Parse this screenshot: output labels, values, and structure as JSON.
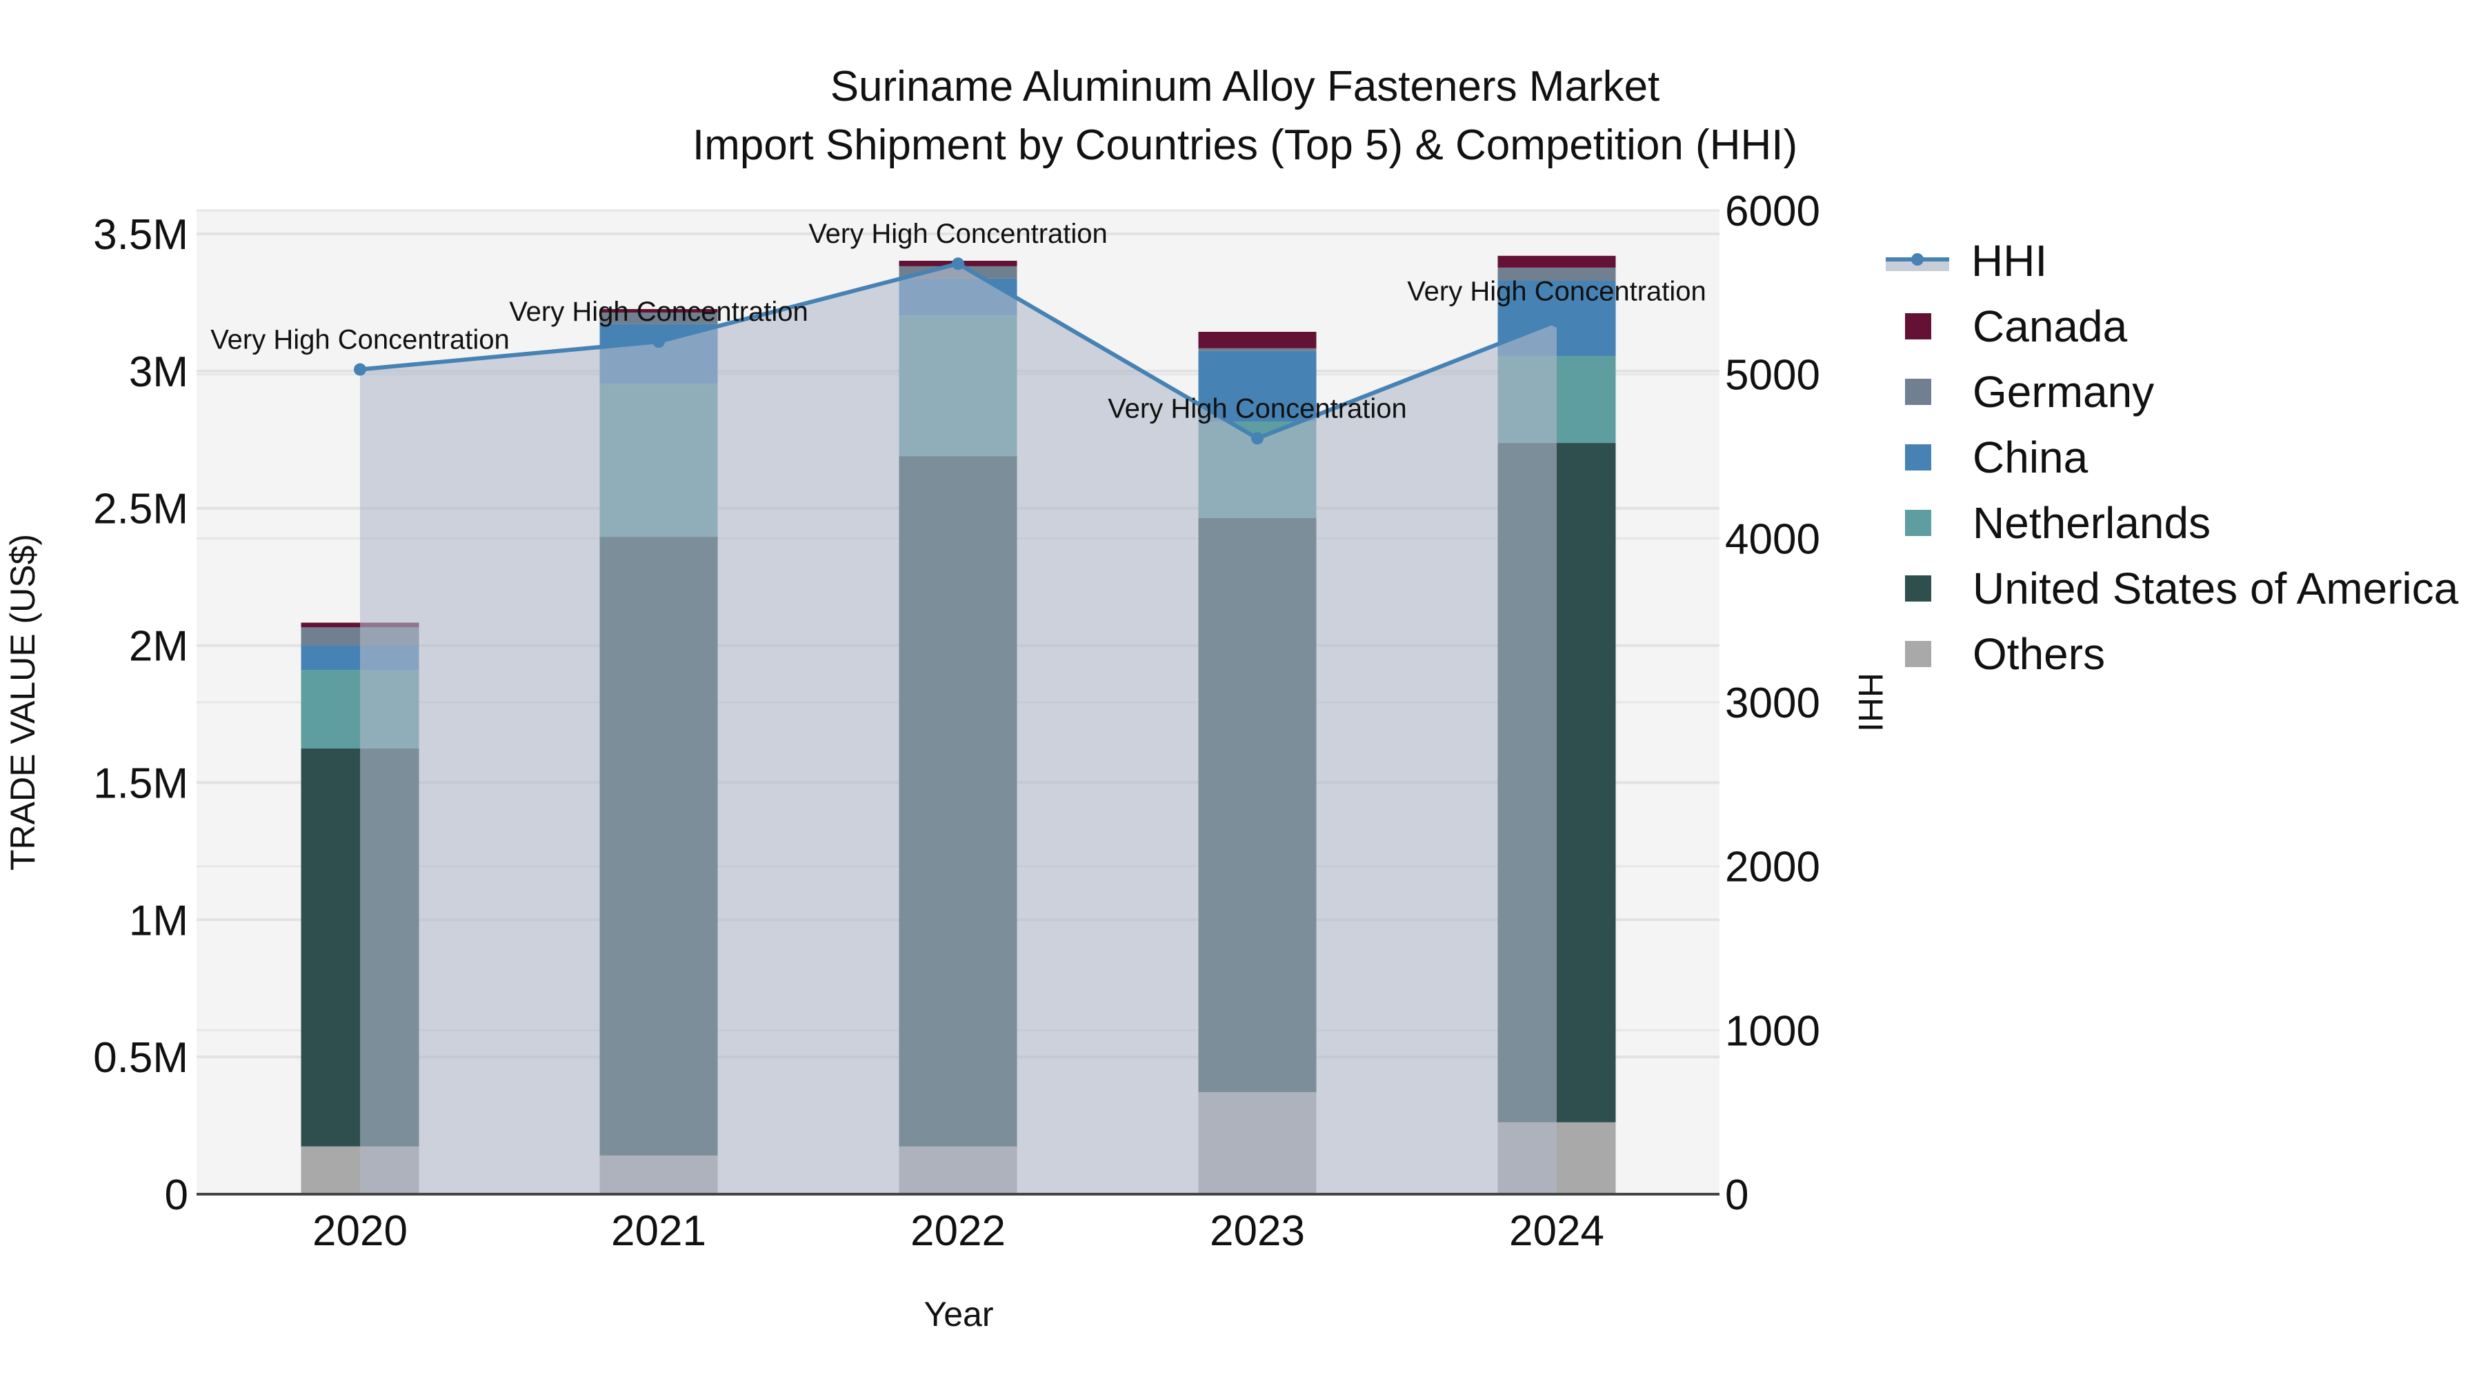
{
  "title": {
    "line1": "Suriname Aluminum Alloy Fasteners Market",
    "line2": "Import Shipment by Countries (Top 5) & Competition (HHI)"
  },
  "axes": {
    "x_label": "Year",
    "y_left_label": "TRADE VALUE (US$)",
    "y_right_label": "HHI",
    "y_left_ticks": [
      "0",
      "0.5M",
      "1M",
      "1.5M",
      "2M",
      "2.5M",
      "3M",
      "3.5M"
    ],
    "y_right_ticks": [
      "0",
      "1000",
      "2000",
      "3000",
      "4000",
      "5000",
      "6000"
    ]
  },
  "legend": [
    {
      "label": "HHI",
      "type": "line",
      "color": "#4682B4"
    },
    {
      "label": "Canada",
      "type": "bar",
      "color": "#631134"
    },
    {
      "label": "Germany",
      "type": "bar",
      "color": "#708090"
    },
    {
      "label": "China",
      "type": "bar",
      "color": "#4682B4"
    },
    {
      "label": "Netherlands",
      "type": "bar",
      "color": "#5F9EA0"
    },
    {
      "label": "United States of America",
      "type": "bar",
      "color": "#2F4F4F"
    },
    {
      "label": "Others",
      "type": "bar",
      "color": "#A9A9A9"
    }
  ],
  "chart_data": {
    "type": "bar",
    "stacked": true,
    "title": "Suriname Aluminum Alloy Fasteners Market Import Shipment by Countries (Top 5) & Competition (HHI)",
    "xlabel": "Year",
    "ylabel": "TRADE VALUE (US$)",
    "y2label": "HHI",
    "categories": [
      "2020",
      "2021",
      "2022",
      "2023",
      "2024"
    ],
    "ylim": [
      0,
      3500000
    ],
    "y2lim": [
      0,
      6000
    ],
    "grid": true,
    "legend_position": "right",
    "series": [
      {
        "name": "Others",
        "color": "#A9A9A9",
        "values": [
          174000,
          141000,
          174000,
          372000,
          262000
        ]
      },
      {
        "name": "United States of America",
        "color": "#2F4F4F",
        "values": [
          1451000,
          2255000,
          2516000,
          2092000,
          2476000
        ]
      },
      {
        "name": "Netherlands",
        "color": "#5F9EA0",
        "values": [
          285000,
          558000,
          513000,
          352000,
          317000
        ]
      },
      {
        "name": "China",
        "color": "#4682B4",
        "values": [
          90000,
          217000,
          134000,
          257000,
          274000
        ]
      },
      {
        "name": "Germany",
        "color": "#708090",
        "values": [
          66000,
          42000,
          45000,
          10000,
          48000
        ]
      },
      {
        "name": "Canada",
        "color": "#631134",
        "values": [
          17000,
          13000,
          20000,
          60000,
          43000
        ]
      }
    ],
    "line_series": {
      "name": "HHI",
      "axis": "right",
      "color": "#4682B4",
      "values": [
        5030,
        5200,
        5675,
        4610,
        5325
      ],
      "annotations": [
        "Very High Concentration",
        "Very High Concentration",
        "Very High Concentration",
        "Very High Concentration",
        "Very High Concentration"
      ]
    }
  }
}
